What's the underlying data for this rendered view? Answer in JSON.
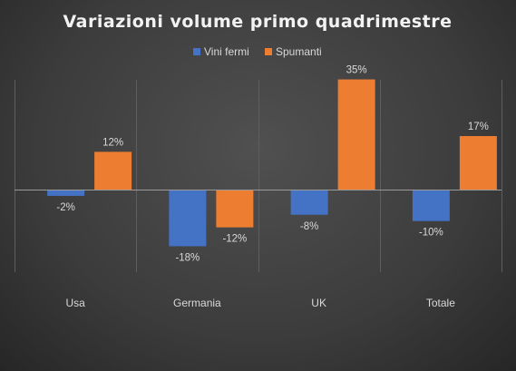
{
  "chart_data": {
    "type": "bar",
    "title": "Variazioni volume primo quadrimestre",
    "categories": [
      "Usa",
      "Germania",
      "UK",
      "Totale"
    ],
    "series": [
      {
        "name": "Vini fermi",
        "values": [
          -2,
          -18,
          -8,
          -10
        ],
        "labels": [
          "-2%",
          "-18%",
          "-8%",
          "-10%"
        ],
        "color": "#4472c4"
      },
      {
        "name": "Spumanti",
        "values": [
          12,
          -12,
          35,
          17
        ],
        "labels": [
          "12%",
          "-12%",
          "35%",
          "17%"
        ],
        "color": "#ed7d31"
      }
    ],
    "unit": "%",
    "ylim": [
      -26,
      36
    ],
    "legend_position": "top",
    "grid": "vertical category separators",
    "colors": {
      "background": "#404040",
      "text": "#d9d9d9"
    }
  }
}
